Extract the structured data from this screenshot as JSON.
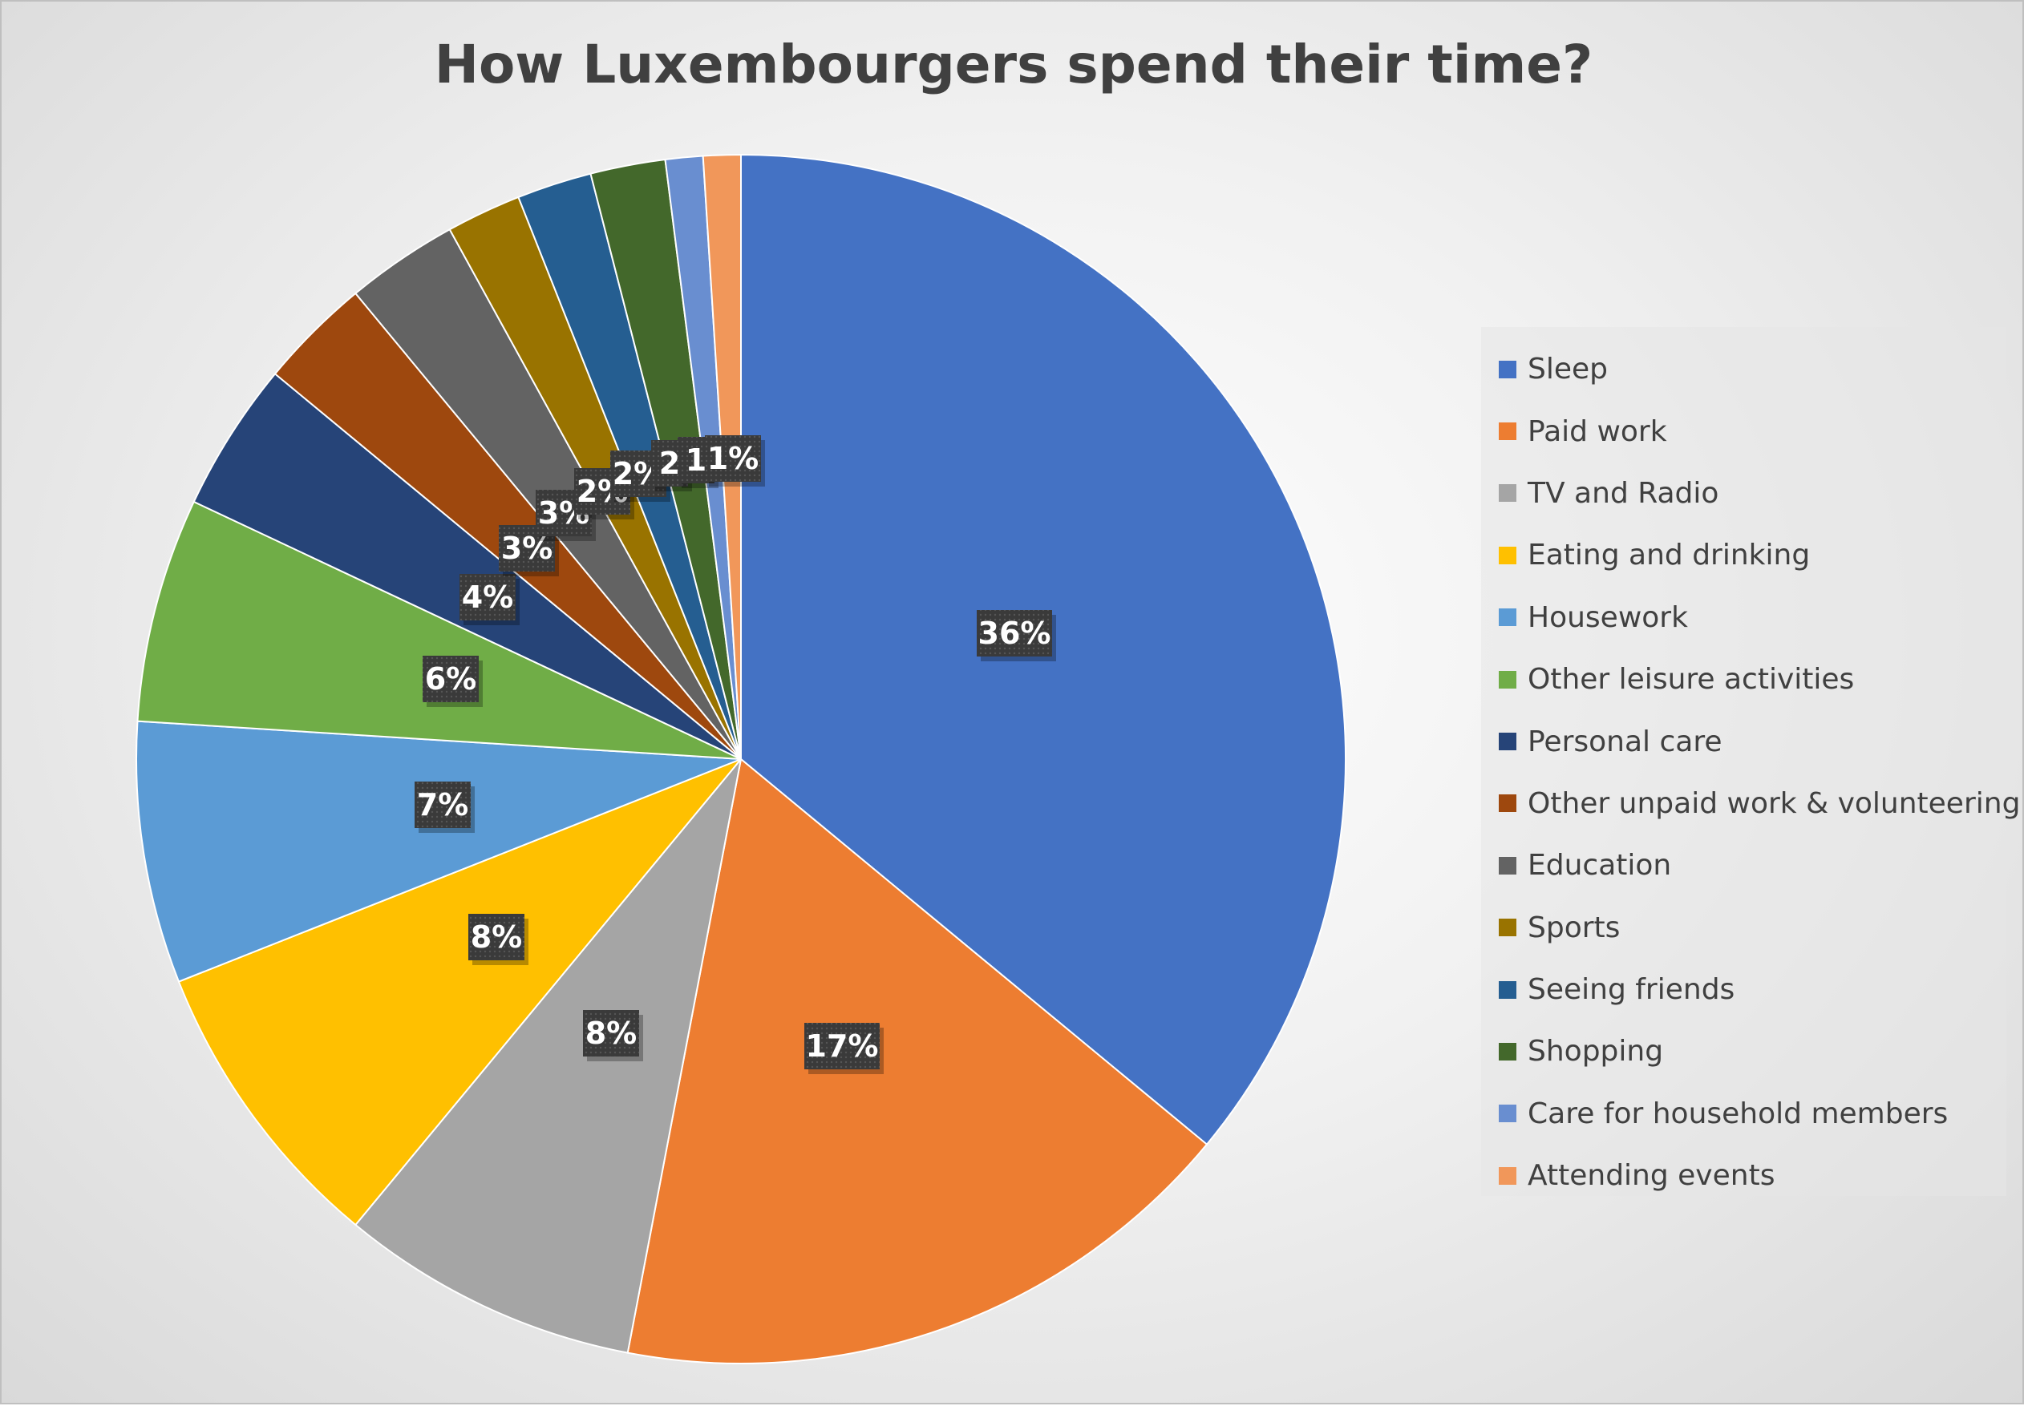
{
  "chart_data": {
    "type": "pie",
    "title": "How Luxembourgers spend their time?",
    "legend_position": "right",
    "slices": [
      {
        "name": "Sleep",
        "value": 36,
        "label": "36%",
        "color": "#4472C4"
      },
      {
        "name": "Paid work",
        "value": 17,
        "label": "17%",
        "color": "#ED7D31"
      },
      {
        "name": "TV and Radio",
        "value": 8,
        "label": "8%",
        "color": "#A5A5A5"
      },
      {
        "name": "Eating and drinking",
        "value": 8,
        "label": "8%",
        "color": "#FFC000"
      },
      {
        "name": "Housework",
        "value": 7,
        "label": "7%",
        "color": "#5B9BD5"
      },
      {
        "name": "Other leisure activities",
        "value": 6,
        "label": "6%",
        "color": "#70AD47"
      },
      {
        "name": "Personal care",
        "value": 4,
        "label": "4%",
        "color": "#264478"
      },
      {
        "name": "Other unpaid work & volunteering",
        "value": 3,
        "label": "3%",
        "color": "#9E480E"
      },
      {
        "name": "Education",
        "value": 3,
        "label": "3%",
        "color": "#636363"
      },
      {
        "name": "Sports",
        "value": 2,
        "label": "2%",
        "color": "#997300"
      },
      {
        "name": "Seeing friends",
        "value": 2,
        "label": "2%",
        "color": "#255E91"
      },
      {
        "name": "Shopping",
        "value": 2,
        "label": "2",
        "color": "#43682B"
      },
      {
        "name": "Care for household members",
        "value": 1,
        "label": "1",
        "color": "#698ED0"
      },
      {
        "name": "Attending events",
        "value": 1,
        "label": "1%",
        "color": "#F1975A"
      }
    ]
  }
}
